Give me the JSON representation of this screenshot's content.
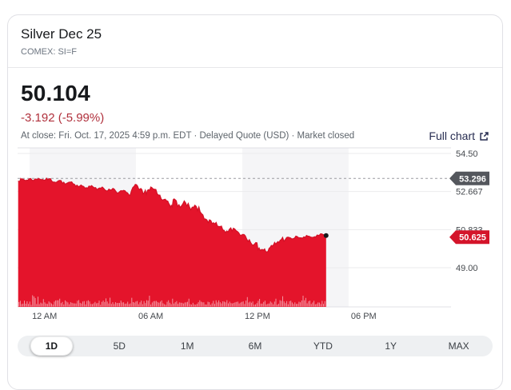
{
  "header": {
    "title": "Silver Dec 25",
    "exchange": "COMEX: SI=F"
  },
  "quote": {
    "price": "50.104",
    "change": "-3.192 (-5.99%)",
    "meta": "At close: Fri. Oct. 17, 2025 4:59 p.m. EDT · Delayed Quote (USD) · Market closed",
    "full_chart_label": "Full chart"
  },
  "chart_data": {
    "type": "area",
    "title": "Silver Dec 25 intraday (1D)",
    "xlabel": "",
    "ylabel": "",
    "x_ticks": [
      {
        "label": "12 AM",
        "hour": 0
      },
      {
        "label": "06 AM",
        "hour": 6
      },
      {
        "label": "12 PM",
        "hour": 12
      },
      {
        "label": "06 PM",
        "hour": 18
      }
    ],
    "shaded_band_hours": [
      [
        0,
        6
      ],
      [
        12,
        18
      ]
    ],
    "y_gridlines": [
      {
        "value": 54.5,
        "label": "54.50"
      },
      {
        "value": 52.667,
        "label": "52.667"
      },
      {
        "value": 50.833,
        "label": "50.833"
      },
      {
        "value": 49.0,
        "label": "49.00"
      }
    ],
    "previous_close": {
      "value": 53.296,
      "label": "53.296"
    },
    "last_trade": {
      "value": 50.625,
      "label": "50.625"
    },
    "x_range_hours": [
      -0.68,
      23.78
    ],
    "y_range": [
      47.115,
      54.769
    ],
    "series": [
      {
        "name": "price",
        "points": [
          [
            -0.65,
            53.18
          ],
          [
            -0.45,
            53.26
          ],
          [
            -0.2,
            53.2
          ],
          [
            0,
            53.28
          ],
          [
            0.25,
            53.22
          ],
          [
            0.5,
            53.3
          ],
          [
            0.8,
            53.22
          ],
          [
            1.1,
            53.28
          ],
          [
            1.4,
            53.12
          ],
          [
            1.7,
            53.2
          ],
          [
            2.0,
            53.02
          ],
          [
            2.3,
            53.12
          ],
          [
            2.6,
            52.92
          ],
          [
            2.9,
            52.98
          ],
          [
            3.2,
            52.85
          ],
          [
            3.5,
            52.95
          ],
          [
            3.8,
            52.75
          ],
          [
            4.1,
            52.88
          ],
          [
            4.4,
            52.7
          ],
          [
            4.7,
            52.82
          ],
          [
            5.0,
            52.6
          ],
          [
            5.3,
            52.72
          ],
          [
            5.6,
            52.5
          ],
          [
            5.9,
            52.92
          ],
          [
            6.15,
            52.8
          ],
          [
            6.4,
            52.55
          ],
          [
            6.65,
            52.72
          ],
          [
            6.9,
            52.85
          ],
          [
            7.2,
            52.55
          ],
          [
            7.5,
            52.25
          ],
          [
            7.8,
            52.2
          ],
          [
            8.0,
            52.0
          ],
          [
            8.2,
            52.28
          ],
          [
            8.5,
            51.9
          ],
          [
            8.8,
            52.12
          ],
          [
            9.1,
            51.78
          ],
          [
            9.4,
            51.95
          ],
          [
            9.7,
            51.6
          ],
          [
            10.0,
            51.3
          ],
          [
            10.3,
            51.12
          ],
          [
            10.6,
            51.0
          ],
          [
            10.9,
            50.82
          ],
          [
            11.2,
            50.72
          ],
          [
            11.5,
            50.9
          ],
          [
            11.8,
            50.68
          ],
          [
            12.1,
            50.6
          ],
          [
            12.4,
            50.35
          ],
          [
            12.7,
            50.15
          ],
          [
            12.95,
            49.95
          ],
          [
            13.2,
            49.85
          ],
          [
            13.45,
            49.78
          ],
          [
            13.7,
            50.05
          ],
          [
            13.95,
            50.2
          ],
          [
            14.2,
            50.35
          ],
          [
            14.5,
            50.45
          ],
          [
            14.8,
            50.38
          ],
          [
            15.1,
            50.5
          ],
          [
            15.4,
            50.42
          ],
          [
            15.7,
            50.52
          ],
          [
            16.0,
            50.46
          ],
          [
            16.3,
            50.55
          ],
          [
            16.55,
            50.6
          ],
          [
            16.73,
            50.55
          ]
        ]
      }
    ],
    "colors": {
      "area": "#e4142b",
      "line": "#d21126",
      "volume_texture": "#f4a3ae",
      "band": "#f5f5f7",
      "gridline": "#ebebed",
      "plot_border": "#e0e0e4",
      "prev_close_line": "#9b9ba1",
      "prev_close_tag": "#54575d",
      "last_tag": "#d4142a",
      "axis_text": "#45494e",
      "dot": "#17181b"
    }
  },
  "range_tabs": {
    "items": [
      {
        "label": "1D",
        "selected": true
      },
      {
        "label": "5D",
        "selected": false
      },
      {
        "label": "1M",
        "selected": false
      },
      {
        "label": "6M",
        "selected": false
      },
      {
        "label": "YTD",
        "selected": false
      },
      {
        "label": "1Y",
        "selected": false
      },
      {
        "label": "MAX",
        "selected": false
      }
    ]
  }
}
